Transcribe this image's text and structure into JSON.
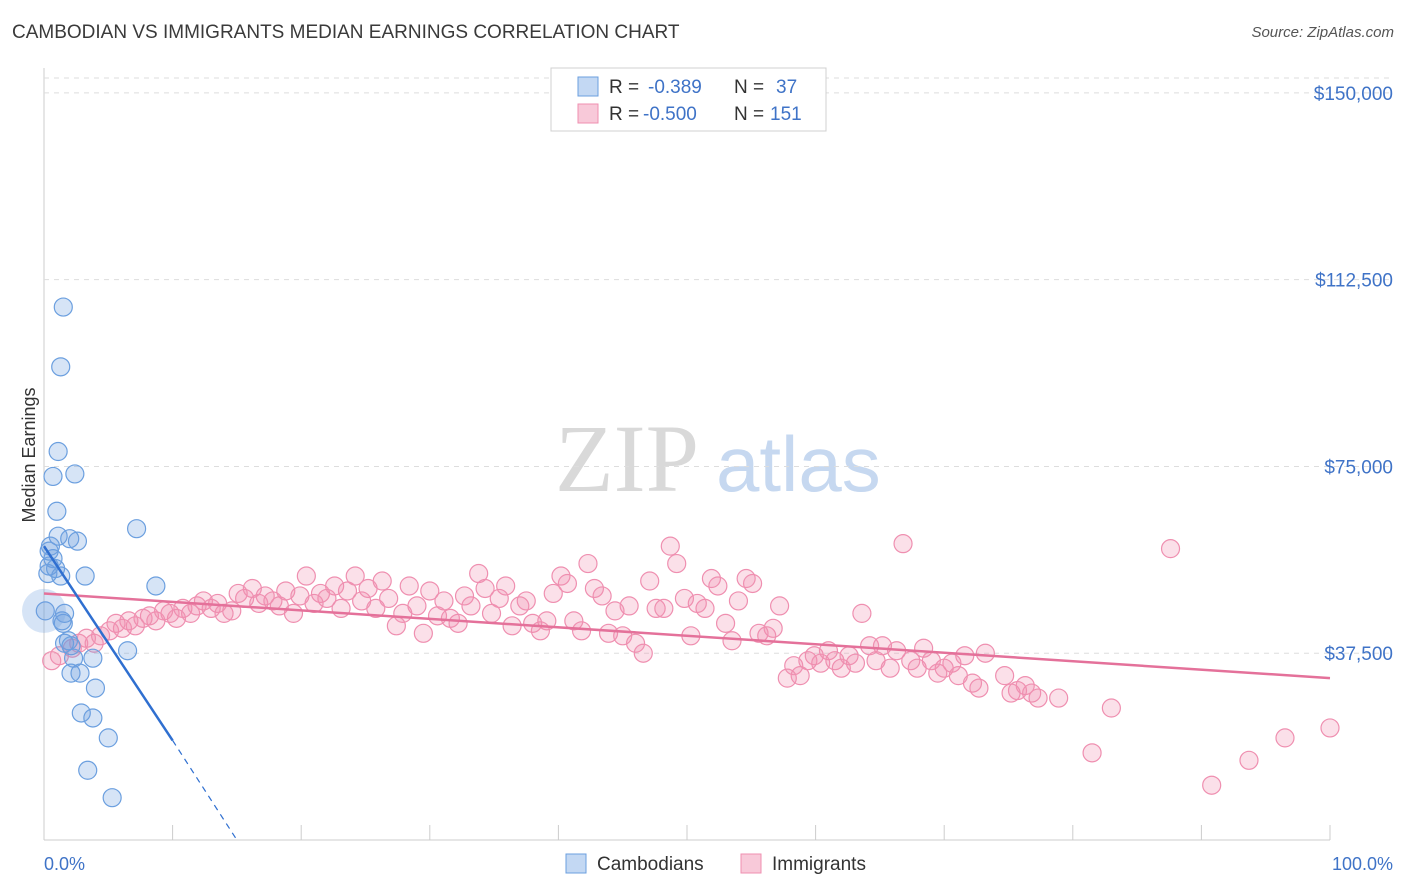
{
  "header": {
    "title": "CAMBODIAN VS IMMIGRANTS MEDIAN EARNINGS CORRELATION CHART",
    "source": "Source: ZipAtlas.com"
  },
  "watermark": {
    "zip": "ZIP",
    "atlas": "atlas"
  },
  "legend": {
    "r_label": "R =",
    "n_label": "N =",
    "rows": [
      {
        "series": "Cambodians",
        "r": "-0.389",
        "n": "37"
      },
      {
        "series": "Immigrants",
        "r": "-0.500",
        "n": "151"
      }
    ]
  },
  "chart_data": {
    "type": "scatter",
    "title": "CAMBODIAN VS IMMIGRANTS MEDIAN EARNINGS CORRELATION CHART",
    "xlabel": "",
    "ylabel": "Median Earnings",
    "xlim": [
      0,
      100
    ],
    "ylim": [
      0,
      155000
    ],
    "x_tick_labels": [
      "0.0%",
      "100.0%"
    ],
    "y_ticks": [
      37500,
      75000,
      112500,
      150000
    ],
    "y_tick_labels": [
      "$37,500",
      "$75,000",
      "$112,500",
      "$150,000"
    ],
    "colors": {
      "Cambodians": "#6b9fdf",
      "Immigrants": "#ef8fb0",
      "cambodians_line": "#2f6fd0",
      "immigrants_line": "#e4719a",
      "tick_label": "#3f73c7"
    },
    "series": [
      {
        "name": "Cambodians",
        "n": 37,
        "r": -0.389,
        "trend": {
          "x0": 0,
          "y0": 59000,
          "x1": 10,
          "y1": 20000,
          "dash_to_x": 15,
          "dash_to_y": 0
        },
        "points": [
          [
            1.5,
            107000
          ],
          [
            1.3,
            95000
          ],
          [
            1.1,
            78000
          ],
          [
            0.7,
            73000
          ],
          [
            2.4,
            73500
          ],
          [
            1.0,
            66000
          ],
          [
            1.1,
            61000
          ],
          [
            2.0,
            60500
          ],
          [
            2.6,
            60000
          ],
          [
            7.2,
            62500
          ],
          [
            0.5,
            59000
          ],
          [
            0.7,
            56500
          ],
          [
            0.4,
            55000
          ],
          [
            0.3,
            53500
          ],
          [
            1.3,
            53000
          ],
          [
            3.2,
            53000
          ],
          [
            8.7,
            51000
          ],
          [
            0.1,
            46000
          ],
          [
            1.6,
            45500
          ],
          [
            1.5,
            43500
          ],
          [
            1.9,
            40000
          ],
          [
            1.6,
            39500
          ],
          [
            2.1,
            39000
          ],
          [
            2.3,
            36500
          ],
          [
            3.8,
            36500
          ],
          [
            6.5,
            38000
          ],
          [
            2.1,
            33500
          ],
          [
            2.8,
            33500
          ],
          [
            4.0,
            30500
          ],
          [
            2.9,
            25500
          ],
          [
            3.8,
            24500
          ],
          [
            5.0,
            20500
          ],
          [
            3.4,
            14000
          ],
          [
            5.3,
            8500
          ],
          [
            0.4,
            58000
          ],
          [
            1.4,
            44000
          ],
          [
            0.9,
            54500
          ]
        ]
      },
      {
        "name": "Immigrants",
        "n": 151,
        "r": -0.5,
        "trend": {
          "x0": 0,
          "y0": 49500,
          "x1": 100,
          "y1": 32500
        },
        "points": [
          [
            0.6,
            36000
          ],
          [
            1.2,
            37000
          ],
          [
            2.2,
            38500
          ],
          [
            2.7,
            39500
          ],
          [
            3.3,
            40500
          ],
          [
            3.9,
            39500
          ],
          [
            4.4,
            41000
          ],
          [
            5.1,
            42000
          ],
          [
            5.6,
            43500
          ],
          [
            6.1,
            42500
          ],
          [
            6.6,
            44000
          ],
          [
            7.1,
            43000
          ],
          [
            7.7,
            44500
          ],
          [
            8.2,
            45000
          ],
          [
            8.7,
            44000
          ],
          [
            9.3,
            46000
          ],
          [
            9.8,
            45500
          ],
          [
            10.3,
            44500
          ],
          [
            10.8,
            46500
          ],
          [
            11.4,
            45500
          ],
          [
            11.9,
            47000
          ],
          [
            12.4,
            48000
          ],
          [
            13.0,
            46500
          ],
          [
            13.5,
            47500
          ],
          [
            14.0,
            45500
          ],
          [
            14.6,
            46000
          ],
          [
            15.1,
            49500
          ],
          [
            15.6,
            48500
          ],
          [
            16.2,
            50500
          ],
          [
            16.7,
            47500
          ],
          [
            17.2,
            49000
          ],
          [
            17.8,
            48000
          ],
          [
            18.3,
            47000
          ],
          [
            18.8,
            50000
          ],
          [
            19.4,
            45500
          ],
          [
            19.9,
            49000
          ],
          [
            20.4,
            53000
          ],
          [
            21.0,
            47500
          ],
          [
            21.5,
            49500
          ],
          [
            22.0,
            48500
          ],
          [
            22.6,
            51000
          ],
          [
            23.1,
            46500
          ],
          [
            23.6,
            50000
          ],
          [
            24.2,
            53000
          ],
          [
            24.7,
            48000
          ],
          [
            25.2,
            50500
          ],
          [
            25.8,
            46500
          ],
          [
            26.3,
            52000
          ],
          [
            26.8,
            48500
          ],
          [
            27.4,
            43000
          ],
          [
            27.9,
            45500
          ],
          [
            28.4,
            51000
          ],
          [
            29.0,
            47000
          ],
          [
            29.5,
            41500
          ],
          [
            30.0,
            50000
          ],
          [
            30.6,
            45000
          ],
          [
            31.1,
            48000
          ],
          [
            31.6,
            44500
          ],
          [
            32.2,
            43500
          ],
          [
            32.7,
            49000
          ],
          [
            33.2,
            47000
          ],
          [
            33.8,
            53500
          ],
          [
            34.3,
            50500
          ],
          [
            34.8,
            45500
          ],
          [
            35.4,
            48500
          ],
          [
            35.9,
            51000
          ],
          [
            36.4,
            43000
          ],
          [
            37.0,
            47000
          ],
          [
            37.5,
            48000
          ],
          [
            38.0,
            43500
          ],
          [
            38.6,
            42000
          ],
          [
            39.1,
            44000
          ],
          [
            39.6,
            49500
          ],
          [
            40.2,
            53000
          ],
          [
            40.7,
            51500
          ],
          [
            41.2,
            44000
          ],
          [
            41.8,
            42000
          ],
          [
            42.3,
            55500
          ],
          [
            42.8,
            50500
          ],
          [
            43.4,
            49000
          ],
          [
            43.9,
            41500
          ],
          [
            44.4,
            46000
          ],
          [
            45.0,
            41000
          ],
          [
            45.5,
            47000
          ],
          [
            46.0,
            39500
          ],
          [
            46.6,
            37500
          ],
          [
            47.1,
            52000
          ],
          [
            47.6,
            46500
          ],
          [
            48.2,
            46500
          ],
          [
            48.7,
            59000
          ],
          [
            49.2,
            55500
          ],
          [
            49.8,
            48500
          ],
          [
            50.3,
            41000
          ],
          [
            50.8,
            47500
          ],
          [
            51.4,
            46500
          ],
          [
            51.9,
            52500
          ],
          [
            52.4,
            51000
          ],
          [
            53.0,
            43500
          ],
          [
            53.5,
            40000
          ],
          [
            54.0,
            48000
          ],
          [
            54.6,
            52500
          ],
          [
            55.1,
            51500
          ],
          [
            55.6,
            41500
          ],
          [
            56.2,
            41000
          ],
          [
            56.7,
            42500
          ],
          [
            57.2,
            47000
          ],
          [
            57.8,
            32500
          ],
          [
            58.3,
            35000
          ],
          [
            58.8,
            33000
          ],
          [
            59.4,
            36000
          ],
          [
            59.9,
            37000
          ],
          [
            60.4,
            35500
          ],
          [
            61.0,
            38000
          ],
          [
            61.5,
            36000
          ],
          [
            62.0,
            34500
          ],
          [
            62.6,
            37000
          ],
          [
            63.1,
            35500
          ],
          [
            63.6,
            45500
          ],
          [
            64.2,
            39000
          ],
          [
            64.7,
            36000
          ],
          [
            65.2,
            39000
          ],
          [
            65.8,
            34500
          ],
          [
            66.3,
            38000
          ],
          [
            66.8,
            59500
          ],
          [
            67.4,
            36000
          ],
          [
            67.9,
            34500
          ],
          [
            68.4,
            38500
          ],
          [
            69.0,
            36000
          ],
          [
            69.5,
            33500
          ],
          [
            70.0,
            34500
          ],
          [
            70.6,
            35500
          ],
          [
            71.1,
            33000
          ],
          [
            71.6,
            37000
          ],
          [
            72.2,
            31500
          ],
          [
            72.7,
            30500
          ],
          [
            73.2,
            37500
          ],
          [
            74.7,
            33000
          ],
          [
            75.2,
            29500
          ],
          [
            75.7,
            30000
          ],
          [
            76.3,
            31000
          ],
          [
            76.8,
            29500
          ],
          [
            77.3,
            28500
          ],
          [
            78.9,
            28500
          ],
          [
            81.5,
            17500
          ],
          [
            83.0,
            26500
          ],
          [
            87.6,
            58500
          ],
          [
            90.8,
            11000
          ],
          [
            96.5,
            20500
          ],
          [
            100.0,
            22500
          ],
          [
            93.7,
            16000
          ]
        ]
      }
    ],
    "legend_position": "top-center"
  }
}
